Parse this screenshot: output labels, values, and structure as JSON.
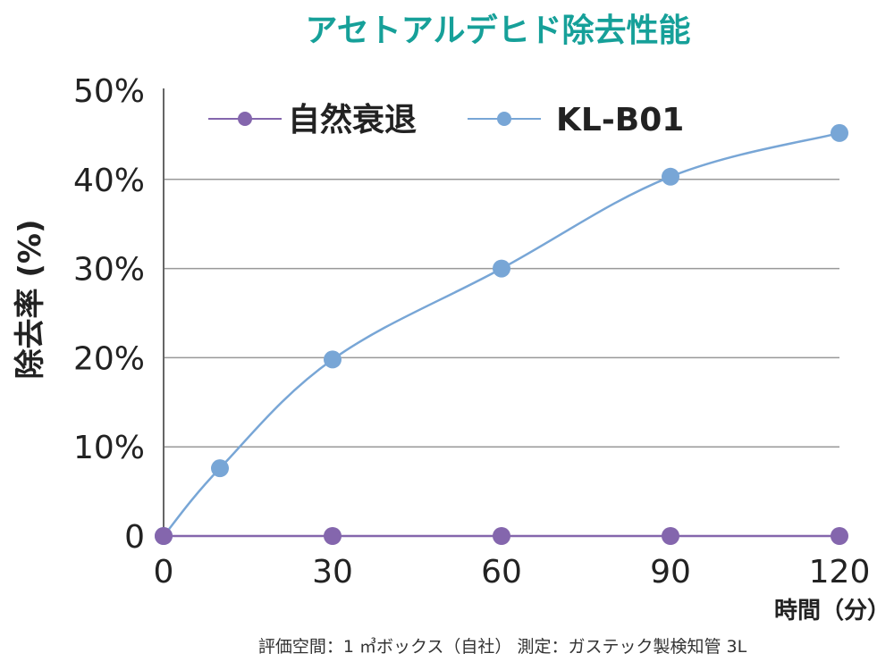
{
  "colors": {
    "title": "#16a099",
    "series_natural": "#8466ad",
    "series_klb01": "#78a6d6",
    "grid": "#999999",
    "axis": "#666666"
  },
  "chart_data": {
    "type": "line",
    "title": "アセトアルデヒド除去性能",
    "xlabel": "時間（分）",
    "ylabel": "除去率 (%)",
    "x_ticks": [
      "0",
      "30",
      "60",
      "90",
      "120"
    ],
    "y_ticks": [
      "0",
      "10%",
      "20%",
      "30%",
      "40%",
      "50%"
    ],
    "xlim": [
      0,
      120
    ],
    "ylim": [
      0,
      50
    ],
    "grid": "horizontal",
    "legend_position": "top",
    "series": [
      {
        "name": "自然衰退",
        "color": "#8466ad",
        "x": [
          0,
          30,
          60,
          90,
          120
        ],
        "y": [
          0,
          0,
          0,
          0,
          0
        ]
      },
      {
        "name": "KL-B01",
        "color": "#78a6d6",
        "x": [
          0,
          10,
          30,
          60,
          90,
          120
        ],
        "y": [
          0,
          7.6,
          19.8,
          30,
          40.3,
          45.2
        ]
      }
    ],
    "footnote": "評価空間：1 ㎥ボックス（自社） 測定：ガステック製検知管 3L"
  }
}
